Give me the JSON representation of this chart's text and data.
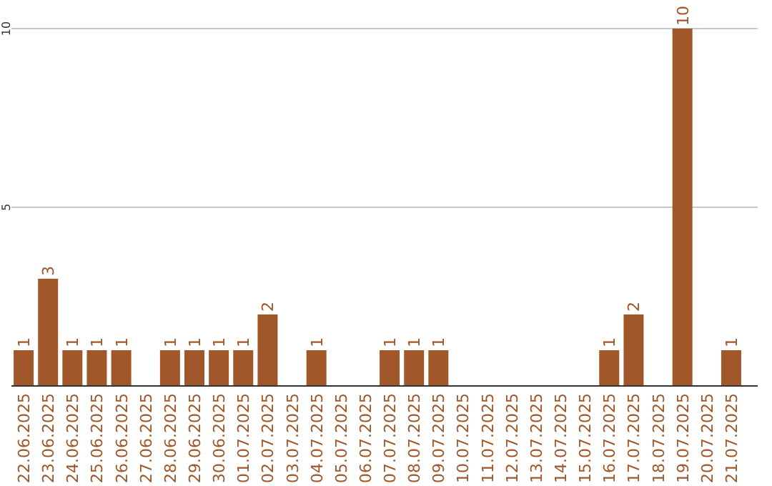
{
  "chart_data": {
    "type": "bar",
    "categories": [
      "22.06.2025",
      "23.06.2025",
      "24.06.2025",
      "25.06.2025",
      "26.06.2025",
      "27.06.2025",
      "28.06.2025",
      "29.06.2025",
      "30.06.2025",
      "01.07.2025",
      "02.07.2025",
      "03.07.2025",
      "04.07.2025",
      "05.07.2025",
      "06.07.2025",
      "07.07.2025",
      "08.07.2025",
      "09.07.2025",
      "10.07.2025",
      "11.07.2025",
      "12.07.2025",
      "13.07.2025",
      "14.07.2025",
      "15.07.2025",
      "16.07.2025",
      "17.07.2025",
      "18.07.2025",
      "19.07.2025",
      "20.07.2025",
      "21.07.2025"
    ],
    "values": [
      1,
      3,
      1,
      1,
      1,
      0,
      1,
      1,
      1,
      1,
      2,
      0,
      1,
      0,
      0,
      1,
      1,
      1,
      0,
      0,
      0,
      0,
      0,
      0,
      1,
      2,
      0,
      10,
      0,
      1
    ],
    "value_labels": [
      "1",
      "3",
      "1",
      "1",
      "1",
      null,
      "1",
      "1",
      "1",
      "1",
      "2",
      null,
      "1",
      null,
      null,
      "1",
      "1",
      "1",
      null,
      null,
      null,
      null,
      null,
      null,
      "1",
      "2",
      null,
      "10",
      null,
      "1"
    ],
    "color": "#a0582a",
    "ylim": [
      0,
      10
    ],
    "yticks": [
      5,
      10
    ],
    "grid": "y"
  }
}
